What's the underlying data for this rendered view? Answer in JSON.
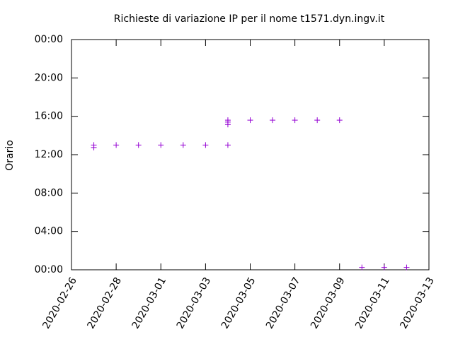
{
  "chart_data": {
    "type": "scatter",
    "title": "Richieste di variazione IP per il nome t1571.dyn.ingv.it",
    "y_label": "Orario",
    "color": "#9400d3",
    "x": [
      "2020-02-27",
      "2020-02-27",
      "2020-02-28",
      "2020-02-29",
      "2020-03-01",
      "2020-03-02",
      "2020-03-03",
      "2020-03-04",
      "2020-03-04",
      "2020-03-04",
      "2020-03-04",
      "2020-03-05",
      "2020-03-06",
      "2020-03-07",
      "2020-03-08",
      "2020-03-09",
      "2020-03-10",
      "2020-03-11",
      "2020-03-12"
    ],
    "values": [
      13.0,
      12.75,
      13.0,
      13.0,
      13.0,
      13.0,
      13.0,
      13.0,
      15.6,
      15.4,
      15.15,
      15.6,
      15.6,
      15.6,
      15.6,
      15.6,
      0.25,
      0.25,
      0.25
    ],
    "xlim": [
      "2020-02-26",
      "2020-03-13"
    ],
    "xticks": [
      "2020-02-26",
      "2020-02-28",
      "2020-03-01",
      "2020-03-03",
      "2020-03-05",
      "2020-03-07",
      "2020-03-09",
      "2020-03-11",
      "2020-03-13"
    ],
    "ylim": [
      0,
      24
    ],
    "yticks": [
      {
        "value": 0,
        "label": "00:00"
      },
      {
        "value": 4,
        "label": "04:00"
      },
      {
        "value": 8,
        "label": "08:00"
      },
      {
        "value": 12,
        "label": "12:00"
      },
      {
        "value": 16,
        "label": "16:00"
      },
      {
        "value": 20,
        "label": "20:00"
      },
      {
        "value": 24,
        "label": "00:00"
      }
    ]
  }
}
